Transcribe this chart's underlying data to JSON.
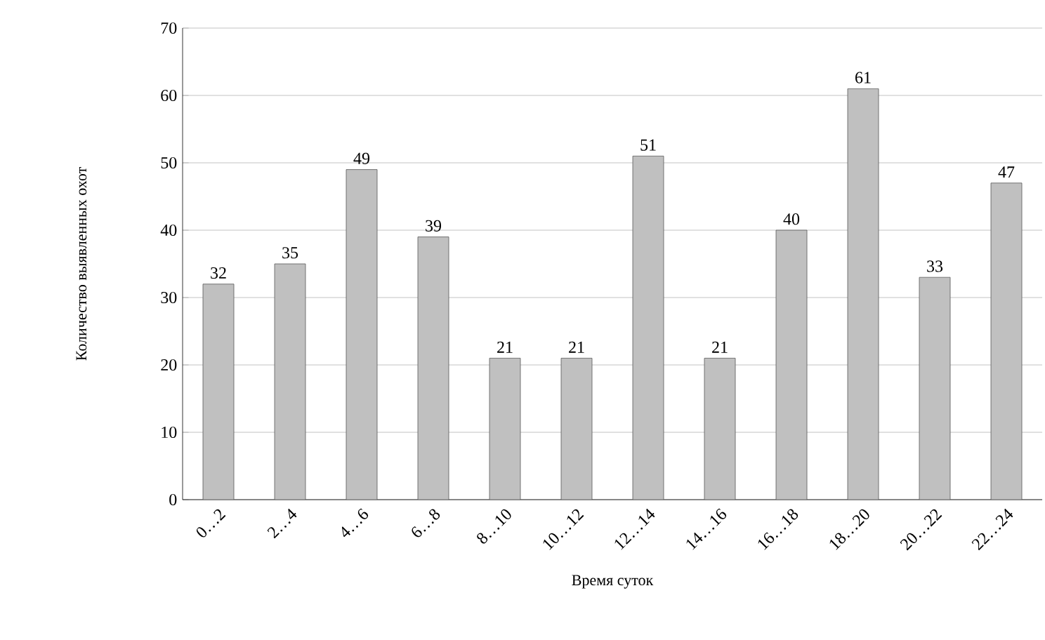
{
  "chart_data": {
    "type": "bar",
    "xlabel": "Время суток",
    "ylabel": "Количество выявленных охот",
    "categories": [
      "0…2",
      "2…4",
      "4…6",
      "6…8",
      "8…10",
      "10…12",
      "12…14",
      "14…16",
      "16…18",
      "18…20",
      "20…22",
      "22…24"
    ],
    "values": [
      32,
      35,
      49,
      39,
      21,
      21,
      51,
      21,
      40,
      61,
      33,
      47
    ],
    "color": "#c0c0c0",
    "ylim": [
      0,
      70
    ],
    "yticks": [
      0,
      10,
      20,
      30,
      40,
      50,
      60,
      70
    ],
    "grid": "y",
    "data_labels": true
  }
}
